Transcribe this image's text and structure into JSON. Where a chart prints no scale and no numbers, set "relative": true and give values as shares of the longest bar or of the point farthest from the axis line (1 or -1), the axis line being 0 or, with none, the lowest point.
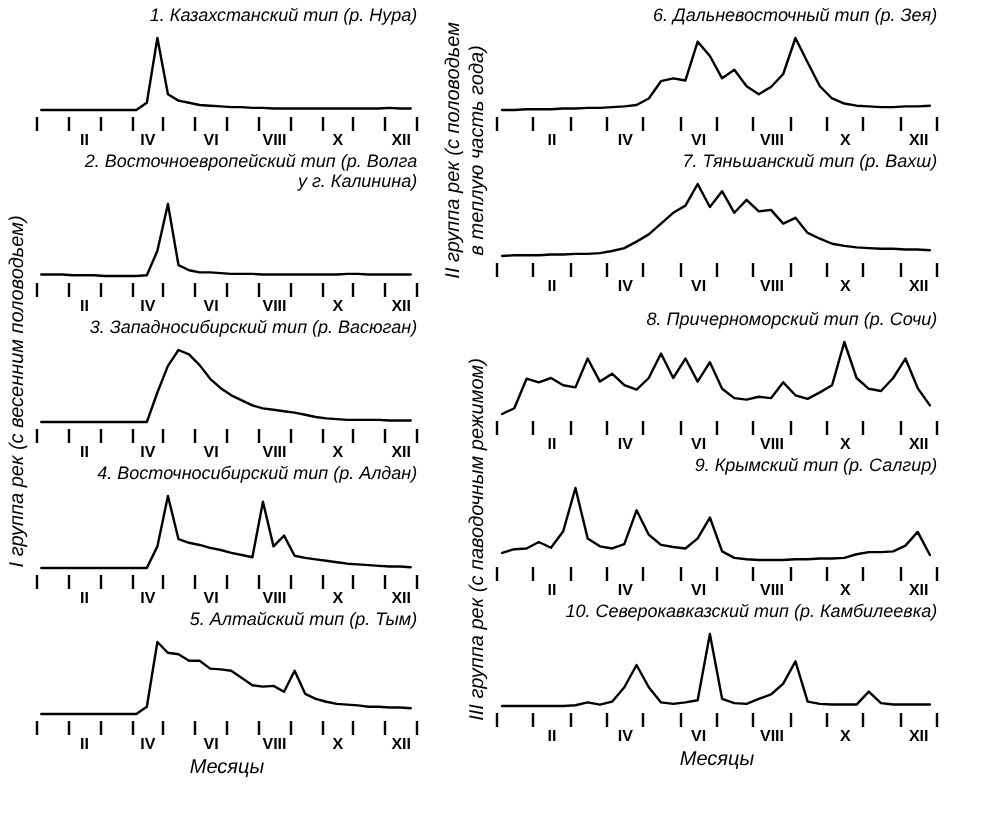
{
  "chart_data": [
    {
      "type": "line",
      "title": "1. Казахстанский тип (р. Нура)",
      "ylabel": "I группа рек (с весенним половодьем)",
      "relative": true,
      "categories": [
        null,
        null,
        null,
        null,
        "II",
        null,
        null,
        null,
        null,
        null,
        "IV",
        null,
        null,
        null,
        null,
        null,
        "VI",
        null,
        null,
        null,
        null,
        null,
        "VIII",
        null,
        null,
        null,
        null,
        null,
        "X",
        null,
        null,
        null,
        null,
        null,
        "XII",
        null
      ],
      "series": [
        {
          "color": "#000000",
          "values": [
            0,
            0,
            0,
            0,
            0,
            0,
            0,
            0,
            0,
            0,
            0.1,
            1,
            0.22,
            0.13,
            0.1,
            0.07,
            0.06,
            0.05,
            0.04,
            0.04,
            0.03,
            0.03,
            0.02,
            0.02,
            0.02,
            0.02,
            0.02,
            0.02,
            0.02,
            0.02,
            0.02,
            0.02,
            0.02,
            0.03,
            0.02,
            0.02
          ]
        }
      ]
    },
    {
      "type": "line",
      "title": "2. Восточноевропейский тип (р. Волга у г. Калинина)",
      "relative": true,
      "categories": [
        null,
        null,
        null,
        null,
        "II",
        null,
        null,
        null,
        null,
        null,
        "IV",
        null,
        null,
        null,
        null,
        null,
        "VI",
        null,
        null,
        null,
        null,
        null,
        "VIII",
        null,
        null,
        null,
        null,
        null,
        "X",
        null,
        null,
        null,
        null,
        null,
        "XII",
        null
      ],
      "series": [
        {
          "color": "#000000",
          "values": [
            0.02,
            0.02,
            0.02,
            0.01,
            0.01,
            0.01,
            0,
            0,
            0,
            0,
            0.01,
            0.35,
            1,
            0.15,
            0.08,
            0.05,
            0.05,
            0.04,
            0.03,
            0.03,
            0.03,
            0.02,
            0.02,
            0.02,
            0.02,
            0.02,
            0.02,
            0.02,
            0.02,
            0.03,
            0.03,
            0.02,
            0.02,
            0.02,
            0.02,
            0.02
          ]
        }
      ]
    },
    {
      "type": "line",
      "title": "3. Западносибирский тип (р. Васюган)",
      "relative": true,
      "categories": [
        null,
        null,
        null,
        null,
        "II",
        null,
        null,
        null,
        null,
        null,
        "IV",
        null,
        null,
        null,
        null,
        null,
        "VI",
        null,
        null,
        null,
        null,
        null,
        "VIII",
        null,
        null,
        null,
        null,
        null,
        "X",
        null,
        null,
        null,
        null,
        null,
        "XII",
        null
      ],
      "series": [
        {
          "color": "#000000",
          "values": [
            0,
            0,
            0,
            0,
            0,
            0,
            0,
            0,
            0,
            0,
            0,
            0.41,
            0.78,
            1,
            0.94,
            0.79,
            0.6,
            0.47,
            0.37,
            0.3,
            0.23,
            0.19,
            0.17,
            0.15,
            0.13,
            0.1,
            0.07,
            0.05,
            0.04,
            0.03,
            0.03,
            0.03,
            0.03,
            0.02,
            0.02,
            0.02
          ]
        }
      ]
    },
    {
      "type": "line",
      "title": "4. Восточносибирский тип (р. Алдан)",
      "relative": true,
      "categories": [
        null,
        null,
        null,
        null,
        "II",
        null,
        null,
        null,
        null,
        null,
        "IV",
        null,
        null,
        null,
        null,
        null,
        "VI",
        null,
        null,
        null,
        null,
        null,
        "VIII",
        null,
        null,
        null,
        null,
        null,
        "X",
        null,
        null,
        null,
        null,
        null,
        "XII",
        null
      ],
      "series": [
        {
          "color": "#000000",
          "values": [
            0,
            0,
            0,
            0,
            0,
            0,
            0,
            0,
            0,
            0,
            0,
            0.3,
            1,
            0.4,
            0.35,
            0.32,
            0.28,
            0.25,
            0.21,
            0.18,
            0.15,
            0.92,
            0.3,
            0.45,
            0.17,
            0.14,
            0.12,
            0.1,
            0.08,
            0.06,
            0.05,
            0.04,
            0.03,
            0.02,
            0.02,
            0.01
          ]
        }
      ]
    },
    {
      "type": "line",
      "title": "5. Алтайский тип (р. Тым)",
      "xlabel": "Месяцы",
      "relative": true,
      "categories": [
        null,
        null,
        null,
        null,
        "II",
        null,
        null,
        null,
        null,
        null,
        "IV",
        null,
        null,
        null,
        null,
        null,
        "VI",
        null,
        null,
        null,
        null,
        null,
        "VIII",
        null,
        null,
        null,
        null,
        null,
        "X",
        null,
        null,
        null,
        null,
        null,
        "XII",
        null
      ],
      "series": [
        {
          "color": "#000000",
          "values": [
            0,
            0,
            0,
            0,
            0,
            0,
            0,
            0,
            0,
            0,
            0.1,
            1,
            0.85,
            0.83,
            0.74,
            0.74,
            0.63,
            0.62,
            0.6,
            0.5,
            0.4,
            0.38,
            0.39,
            0.31,
            0.6,
            0.28,
            0.21,
            0.17,
            0.14,
            0.13,
            0.12,
            0.1,
            0.1,
            0.09,
            0.09,
            0.08
          ]
        }
      ]
    },
    {
      "type": "line",
      "title": "6. Дальневосточный тип (р. Зея)",
      "ylabel": "II группа рек (с половодьем в теплую часть года)",
      "relative": true,
      "categories": [
        null,
        null,
        null,
        null,
        "II",
        null,
        null,
        null,
        null,
        null,
        "IV",
        null,
        null,
        null,
        null,
        null,
        "VI",
        null,
        null,
        null,
        null,
        null,
        "VIII",
        null,
        null,
        null,
        null,
        null,
        "X",
        null,
        null,
        null,
        null,
        null,
        "XII",
        null
      ],
      "series": [
        {
          "color": "#000000",
          "values": [
            0,
            0,
            0.01,
            0.01,
            0.01,
            0.02,
            0.02,
            0.03,
            0.03,
            0.04,
            0.05,
            0.07,
            0.16,
            0.4,
            0.44,
            0.41,
            0.95,
            0.75,
            0.44,
            0.56,
            0.33,
            0.22,
            0.32,
            0.5,
            1,
            0.66,
            0.33,
            0.16,
            0.09,
            0.06,
            0.05,
            0.04,
            0.04,
            0.05,
            0.05,
            0.06
          ]
        }
      ]
    },
    {
      "type": "line",
      "title": "7. Тяньшанский тип (р. Вахш)",
      "relative": true,
      "categories": [
        null,
        null,
        null,
        null,
        "II",
        null,
        null,
        null,
        null,
        null,
        "IV",
        null,
        null,
        null,
        null,
        null,
        "VI",
        null,
        null,
        null,
        null,
        null,
        "VIII",
        null,
        null,
        null,
        null,
        null,
        "X",
        null,
        null,
        null,
        null,
        null,
        "XII",
        null
      ],
      "series": [
        {
          "color": "#000000",
          "values": [
            0,
            0.01,
            0.01,
            0.01,
            0.02,
            0.02,
            0.03,
            0.03,
            0.04,
            0.07,
            0.11,
            0.2,
            0.3,
            0.45,
            0.6,
            0.7,
            1,
            0.68,
            0.9,
            0.6,
            0.78,
            0.62,
            0.64,
            0.45,
            0.53,
            0.32,
            0.24,
            0.17,
            0.14,
            0.12,
            0.11,
            0.1,
            0.1,
            0.09,
            0.09,
            0.08
          ]
        }
      ]
    },
    {
      "type": "line",
      "title": "8. Причерноморский тип (р. Сочи)",
      "ylabel": "III группа рек (с паводочным режимом)",
      "relative": true,
      "categories": [
        null,
        null,
        null,
        null,
        "II",
        null,
        null,
        null,
        null,
        null,
        "IV",
        null,
        null,
        null,
        null,
        null,
        "VI",
        null,
        null,
        null,
        null,
        null,
        "VIII",
        null,
        null,
        null,
        null,
        null,
        "X",
        null,
        null,
        null,
        null,
        null,
        "XII",
        null
      ],
      "series": [
        {
          "color": "#000000",
          "values": [
            0,
            0.08,
            0.49,
            0.44,
            0.5,
            0.4,
            0.37,
            0.77,
            0.45,
            0.56,
            0.4,
            0.34,
            0.5,
            0.84,
            0.5,
            0.77,
            0.45,
            0.72,
            0.35,
            0.22,
            0.2,
            0.24,
            0.22,
            0.44,
            0.26,
            0.21,
            0.3,
            0.4,
            1,
            0.5,
            0.35,
            0.32,
            0.5,
            0.77,
            0.36,
            0.12
          ]
        }
      ]
    },
    {
      "type": "line",
      "title": "9. Крымский тип (р. Салгир)",
      "relative": true,
      "categories": [
        null,
        null,
        null,
        null,
        "II",
        null,
        null,
        null,
        null,
        null,
        "IV",
        null,
        null,
        null,
        null,
        null,
        "VI",
        null,
        null,
        null,
        null,
        null,
        "VIII",
        null,
        null,
        null,
        null,
        null,
        "X",
        null,
        null,
        null,
        null,
        null,
        "XII",
        null
      ],
      "series": [
        {
          "color": "#000000",
          "values": [
            0.1,
            0.15,
            0.16,
            0.25,
            0.17,
            0.4,
            1,
            0.3,
            0.19,
            0.16,
            0.22,
            0.69,
            0.35,
            0.21,
            0.18,
            0.16,
            0.3,
            0.59,
            0.12,
            0.03,
            0.01,
            0,
            0,
            0,
            0.01,
            0.01,
            0.02,
            0.02,
            0.03,
            0.08,
            0.11,
            0.11,
            0.12,
            0.2,
            0.39,
            0.07
          ]
        }
      ]
    },
    {
      "type": "line",
      "title": "10. Северокавказский тип (р. Камбилеевка)",
      "xlabel": "Месяцы",
      "relative": true,
      "categories": [
        null,
        null,
        null,
        null,
        "II",
        null,
        null,
        null,
        null,
        null,
        "IV",
        null,
        null,
        null,
        null,
        null,
        "VI",
        null,
        null,
        null,
        null,
        null,
        "VIII",
        null,
        null,
        null,
        null,
        null,
        "X",
        null,
        null,
        null,
        null,
        null,
        "XII",
        null
      ],
      "series": [
        {
          "color": "#000000",
          "values": [
            0,
            0,
            0,
            0,
            0,
            0,
            0.01,
            0.05,
            0.02,
            0.06,
            0.26,
            0.57,
            0.26,
            0.05,
            0.03,
            0.05,
            0.08,
            1,
            0.1,
            0.04,
            0.03,
            0.1,
            0.16,
            0.31,
            0.62,
            0.06,
            0.03,
            0.02,
            0.02,
            0.02,
            0.2,
            0.04,
            0.02,
            0.02,
            0.02,
            0.02
          ]
        }
      ]
    }
  ]
}
